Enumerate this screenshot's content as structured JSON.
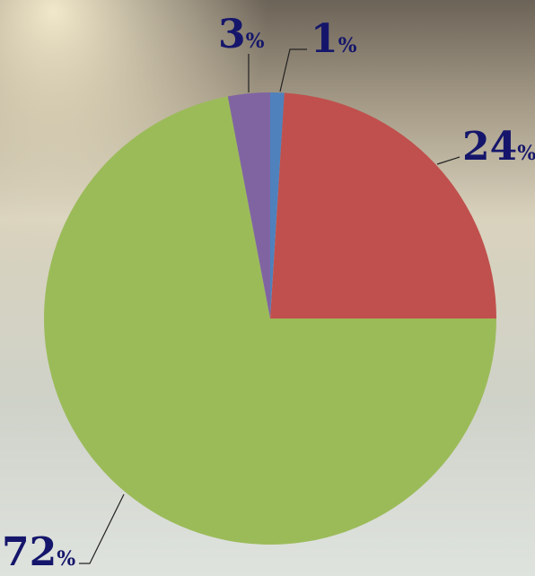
{
  "chart_data": {
    "type": "pie",
    "values": [
      1,
      24,
      72,
      3
    ],
    "value_labels": [
      "1%",
      "24%",
      "72%",
      "3%"
    ],
    "colors": [
      "#4f81bd",
      "#c0504d",
      "#9bbb59",
      "#8064a2"
    ]
  }
}
